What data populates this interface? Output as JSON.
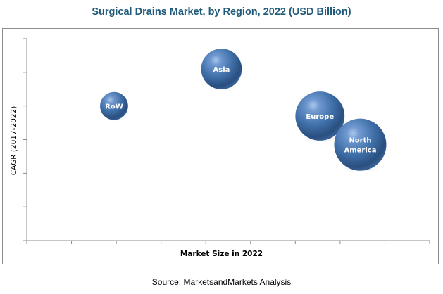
{
  "chart_data": {
    "type": "scatter",
    "subtype": "bubble",
    "title": "Surgical Drains Market, by Region, 2022 (USD Billion)",
    "xlabel": "Market Size in 2022",
    "ylabel": "CAGR (2017-2022)",
    "xlim": [
      0,
      9
    ],
    "ylim": [
      0,
      6
    ],
    "x_ticks": 10,
    "y_ticks": 7,
    "tick_labels_shown": false,
    "grid": false,
    "legend": "none",
    "bubble_color": "#3f6fa8",
    "points": [
      {
        "label": "RoW",
        "x": 1.95,
        "y": 4.0,
        "size": 0.29
      },
      {
        "label": "Asia",
        "x": 4.35,
        "y": 5.1,
        "size": 0.61
      },
      {
        "label": "Europe",
        "x": 6.55,
        "y": 3.7,
        "size": 0.89
      },
      {
        "label": "North America",
        "x": 7.45,
        "y": 2.85,
        "size": 1.0
      }
    ]
  },
  "source": "Source: MarketsandMarkets Analysis"
}
